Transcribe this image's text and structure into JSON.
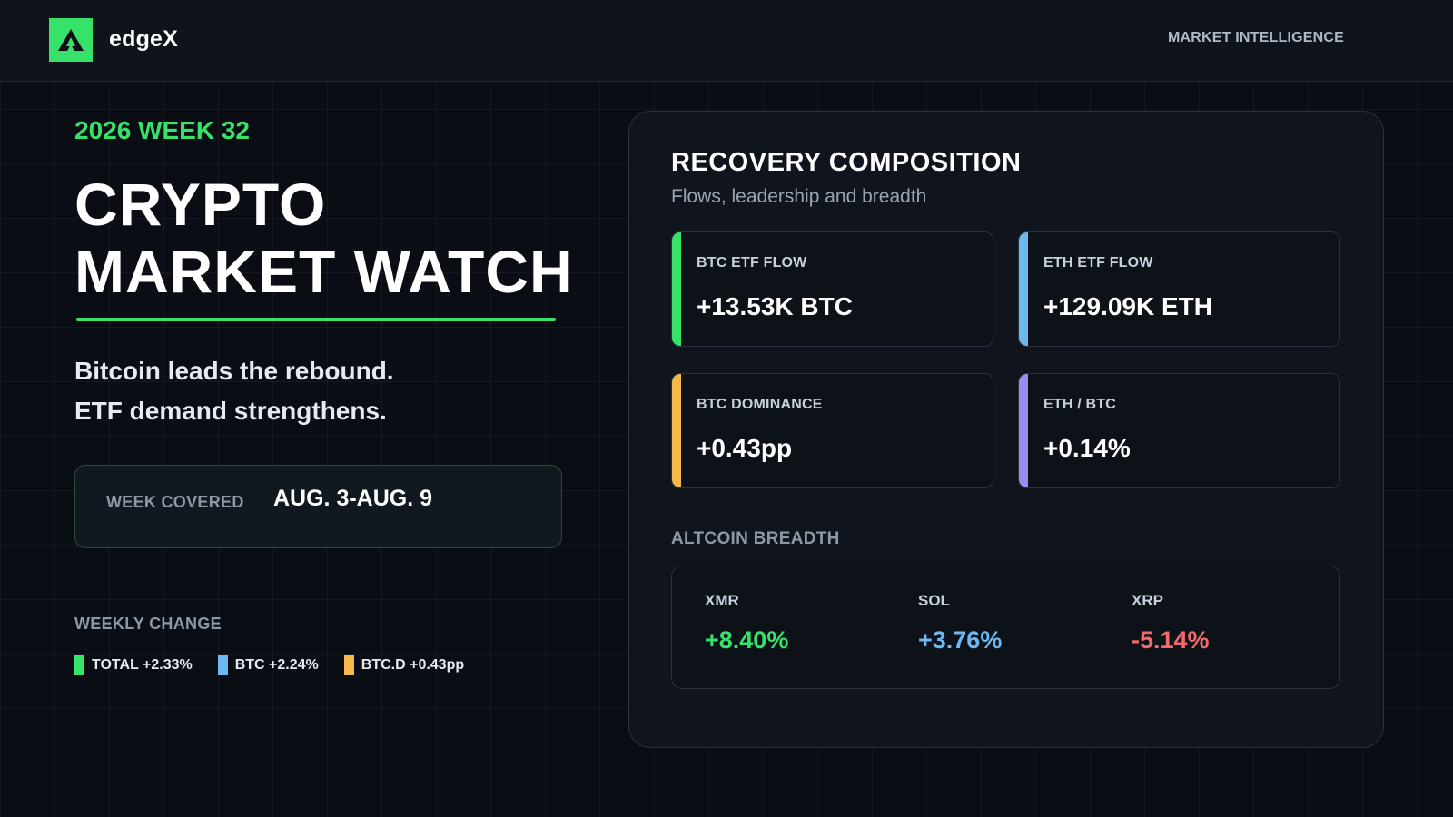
{
  "header": {
    "brand": "edgeX",
    "tag": "MARKET INTELLIGENCE"
  },
  "hero": {
    "week": "2026 WEEK 32",
    "title_line1": "CRYPTO",
    "title_line2": "MARKET WATCH",
    "tagline_line1": "Bitcoin leads the rebound.",
    "tagline_line2": "ETF demand strengthens."
  },
  "week_covered": {
    "label": "WEEK COVERED",
    "value": "AUG. 3-AUG. 9"
  },
  "weekly_change": {
    "label": "WEEKLY CHANGE",
    "items": [
      {
        "text": "TOTAL +2.33%",
        "color": "#37e26a"
      },
      {
        "text": "BTC +2.24%",
        "color": "#6cb8f0"
      },
      {
        "text": "BTC.D +0.43pp",
        "color": "#f5b84a"
      }
    ]
  },
  "panel": {
    "title": "RECOVERY COMPOSITION",
    "subtitle": "Flows, leadership and breadth",
    "metrics": [
      {
        "label": "BTC ETF FLOW",
        "value": "+13.53K BTC",
        "color": "#37e26a"
      },
      {
        "label": "ETH ETF FLOW",
        "value": "+129.09K ETH",
        "color": "#6cb8f0"
      },
      {
        "label": "BTC DOMINANCE",
        "value": "+0.43pp",
        "color": "#f5b84a"
      },
      {
        "label": "ETH / BTC",
        "value": "+0.14%",
        "color": "#9a8cf0"
      }
    ],
    "breadth_label": "ALTCOIN BREADTH",
    "breadth": [
      {
        "symbol": "XMR",
        "value": "+8.40%",
        "color": "#37e26a"
      },
      {
        "symbol": "SOL",
        "value": "+3.76%",
        "color": "#6cb8f0"
      },
      {
        "symbol": "XRP",
        "value": "-5.14%",
        "color": "#f06a6a"
      }
    ]
  },
  "icons": {
    "logo": "edgex-logo-icon"
  }
}
